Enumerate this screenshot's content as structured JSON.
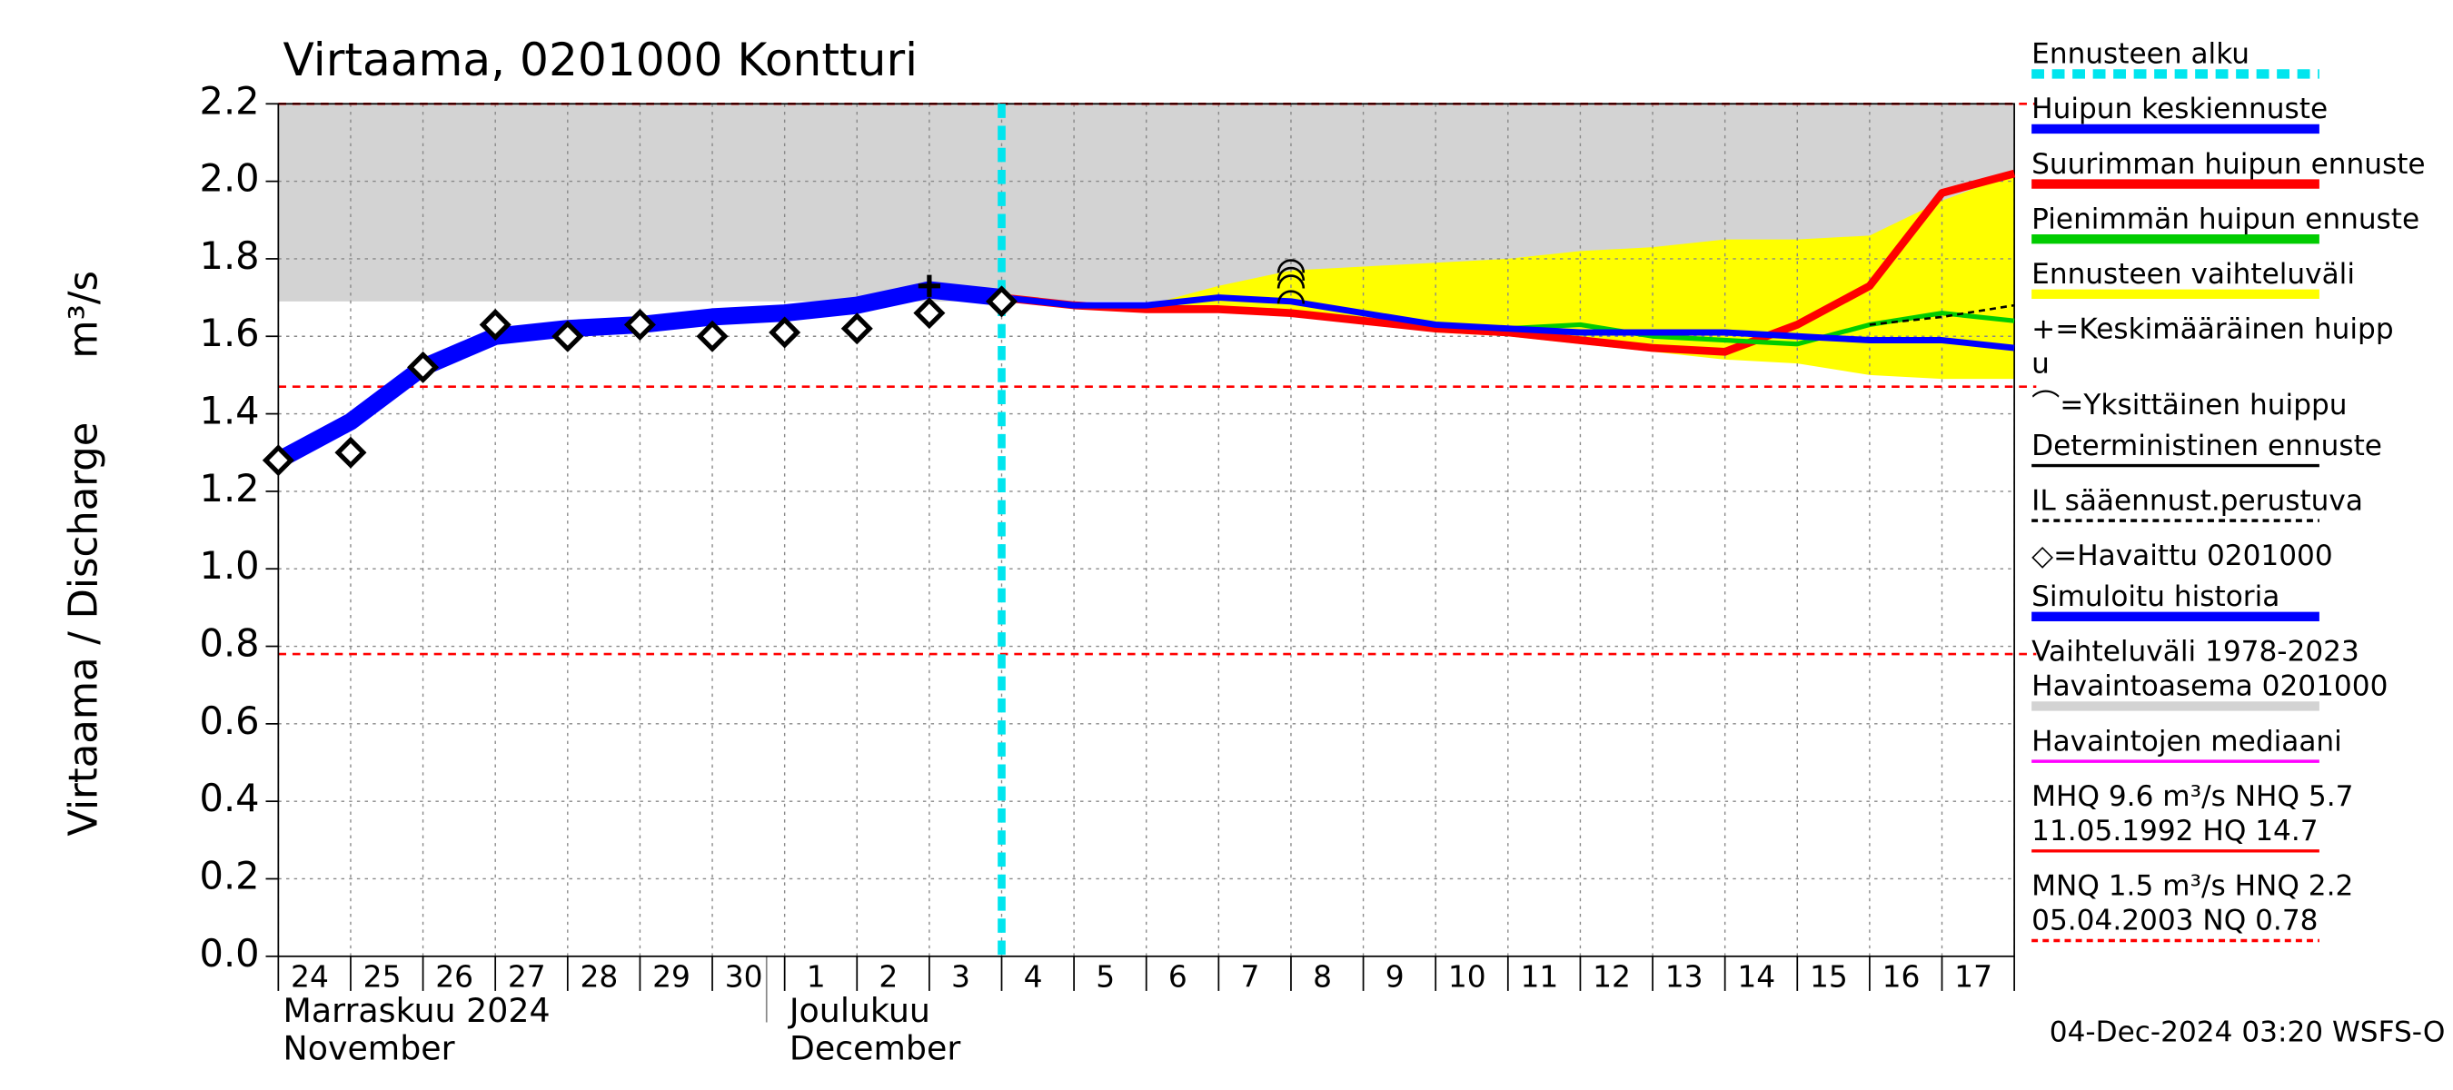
{
  "chart_data": {
    "type": "line",
    "title": "Virtaama, 0201000 Kontturi",
    "y_label": "Virtaama / Discharge",
    "y_unit": "m³/s",
    "categories": [
      "24",
      "25",
      "26",
      "27",
      "28",
      "29",
      "30",
      "1",
      "2",
      "3",
      "4",
      "5",
      "6",
      "7",
      "8",
      "9",
      "10",
      "11",
      "12",
      "13",
      "14",
      "15",
      "16",
      "17",
      null
    ],
    "ylim": [
      0,
      2.2
    ],
    "yticks": [
      {
        "value": 0,
        "label": "0.0"
      },
      0.2,
      0.4,
      0.6,
      0.8,
      {
        "value": 1,
        "label": "1.0"
      },
      1.2,
      1.4,
      1.6,
      1.8,
      {
        "value": 2,
        "label": "2.0"
      },
      2.2
    ],
    "grid": true,
    "month_labels": [
      {
        "index": 0,
        "lines": [
          "Marraskuu 2024",
          "November"
        ]
      },
      {
        "index": 7,
        "lines": [
          "Joulukuu",
          "December"
        ]
      }
    ],
    "range_band": {
      "color": "#d3d3d3",
      "lower": 1.69,
      "upper": 2.2
    },
    "forecast_band": {
      "color": "#ffff00",
      "upper": [
        null,
        null,
        null,
        null,
        null,
        null,
        null,
        null,
        null,
        null,
        null,
        null,
        1.68,
        1.73,
        1.77,
        1.78,
        1.79,
        1.8,
        1.82,
        1.83,
        1.85,
        1.85,
        1.86,
        1.95,
        2.02
      ],
      "lower": [
        null,
        null,
        null,
        null,
        null,
        null,
        null,
        null,
        null,
        null,
        null,
        null,
        1.68,
        1.67,
        1.66,
        1.64,
        1.61,
        1.6,
        1.58,
        1.56,
        1.54,
        1.53,
        1.5,
        1.49,
        1.49
      ]
    },
    "reference_lines": [
      {
        "value": 2.2,
        "color": "#ff0000"
      },
      {
        "value": 1.47,
        "color": "#ff0000"
      },
      {
        "value": 0.78,
        "color": "#ff0000"
      }
    ],
    "forecast_start": {
      "index": 10,
      "color": "#00e5ee"
    },
    "series": [
      {
        "color": "#0000ff",
        "width": 11,
        "values": [
          1.28,
          1.38,
          1.52,
          1.6,
          1.62,
          1.63,
          1.65,
          1.66,
          1.68,
          1.72,
          1.7,
          null,
          null,
          null,
          null,
          null,
          null,
          null,
          null,
          null,
          null,
          null,
          null,
          null,
          null
        ]
      },
      {
        "color": "#ff0000",
        "width": 5,
        "values": [
          null,
          null,
          null,
          null,
          null,
          null,
          null,
          null,
          null,
          null,
          1.7,
          1.68,
          1.67,
          1.67,
          1.66,
          1.64,
          1.62,
          1.61,
          1.59,
          1.57,
          1.56,
          1.63,
          1.73,
          1.97,
          2.02
        ]
      },
      {
        "color": "#00cc00",
        "width": 3,
        "values": [
          null,
          null,
          null,
          null,
          null,
          null,
          null,
          null,
          null,
          null,
          1.7,
          1.68,
          1.68,
          1.7,
          1.69,
          1.66,
          1.63,
          1.62,
          1.63,
          1.6,
          1.59,
          1.58,
          1.63,
          1.66,
          1.64
        ]
      },
      {
        "color": "#000000",
        "width": 1.5,
        "dash": "4 3",
        "values": [
          null,
          null,
          null,
          null,
          null,
          null,
          null,
          null,
          null,
          null,
          null,
          null,
          null,
          null,
          null,
          null,
          null,
          null,
          null,
          null,
          null,
          null,
          1.63,
          1.65,
          1.68
        ]
      },
      {
        "color": "#0000ff",
        "width": 4,
        "values": [
          null,
          null,
          null,
          null,
          null,
          null,
          null,
          null,
          null,
          null,
          1.7,
          1.68,
          1.68,
          1.7,
          1.69,
          1.66,
          1.63,
          1.62,
          1.61,
          1.61,
          1.61,
          1.6,
          1.59,
          1.59,
          1.57
        ]
      }
    ],
    "observed": {
      "color": "#000000",
      "values": [
        1.28,
        1.3,
        1.52,
        1.63,
        1.6,
        1.63,
        1.6,
        1.61,
        1.62,
        1.66,
        1.69,
        null,
        null,
        null,
        null,
        null,
        null,
        null,
        null,
        null,
        null,
        null,
        null,
        null,
        null
      ]
    },
    "mean_peak": {
      "index": 9,
      "value": 1.73
    },
    "single_peaks": {
      "index": 14,
      "values": [
        1.7,
        1.74,
        1.76,
        1.78
      ]
    },
    "legend": [
      {
        "lines": [
          "Ennusteen alku"
        ],
        "color": "#00e5ee",
        "style": "dashed"
      },
      {
        "lines": [
          "Huipun keskiennuste"
        ],
        "color": "#0000ff",
        "style": "solid"
      },
      {
        "lines": [
          "Suurimman huipun ennuste"
        ],
        "color": "#ff0000",
        "style": "solid"
      },
      {
        "lines": [
          "Pienimmän huipun ennuste"
        ],
        "color": "#00cc00",
        "style": "solid"
      },
      {
        "lines": [
          "Ennusteen vaihteluväli"
        ],
        "color": "#ffff00",
        "style": "solid"
      },
      {
        "lines": [
          "+=Keskimääräinen huipp",
          "u"
        ],
        "color": null,
        "style": "none"
      },
      {
        "lines": [
          "⌒=Yksittäinen huippu"
        ],
        "color": null,
        "style": "none"
      },
      {
        "lines": [
          "Deterministinen ennuste"
        ],
        "color": "#000000",
        "style": "thin"
      },
      {
        "lines": [
          "IL sääennust.perustuva"
        ],
        "color": "#000000",
        "style": "thindash"
      },
      {
        "lines": [
          "◇=Havaittu 0201000"
        ],
        "color": null,
        "style": "none"
      },
      {
        "lines": [
          "Simuloitu historia"
        ],
        "color": "#0000ff",
        "style": "solid"
      },
      {
        "lines": [
          "Vaihteluväli 1978-2023",
          " Havaintoasema 0201000"
        ],
        "color": "#d3d3d3",
        "style": "solid"
      },
      {
        "lines": [
          "Havaintojen mediaani"
        ],
        "color": "#ff00ff",
        "style": "thin"
      },
      {
        "lines": [
          "MHQ  9.6 m³/s NHQ  5.7",
          "11.05.1992 HQ 14.7"
        ],
        "color": "#ff0000",
        "style": "thin"
      },
      {
        "lines": [
          "MNQ  1.5 m³/s HNQ  2.2",
          "05.04.2003 NQ 0.78"
        ],
        "color": "#ff0000",
        "style": "thindash"
      }
    ],
    "footer": "04-Dec-2024 03:20 WSFS-O"
  }
}
